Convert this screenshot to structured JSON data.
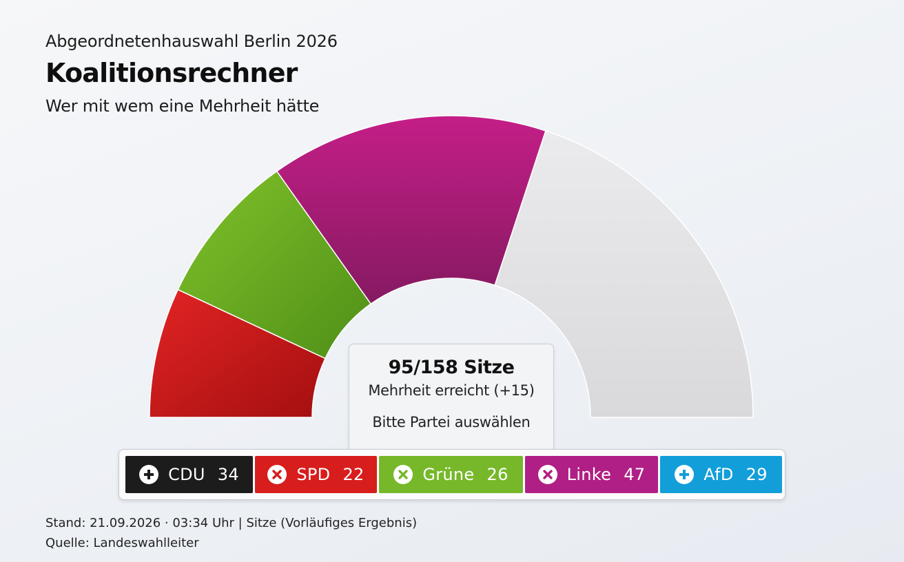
{
  "header": {
    "kicker": "Abgeordnetenhauswahl Berlin 2026",
    "title": "Koalitionsrechner",
    "subtitle": "Wer mit wem eine Mehrheit hätte"
  },
  "chart_data": {
    "type": "pie",
    "variant": "semicircle",
    "total_seats": 158,
    "slices": [
      {
        "party": "SPD",
        "seats": 22,
        "color": "#d01c1c",
        "selected": true
      },
      {
        "party": "Grüne",
        "seats": 26,
        "color": "#72b51f",
        "selected": true
      },
      {
        "party": "Linke",
        "seats": 47,
        "color": "#a51a7c",
        "selected": true
      },
      {
        "party": "Rest",
        "seats": 63,
        "color": "#e3e3e5",
        "selected": false
      }
    ]
  },
  "info": {
    "seats_text": "95/158 Sitze",
    "status_text": "Mehrheit erreicht (+15)",
    "hint_text": "Bitte Partei auswählen"
  },
  "parties": [
    {
      "name": "CDU",
      "seats": "34",
      "color": "#1c1c1c",
      "icon": "plus-icon"
    },
    {
      "name": "SPD",
      "seats": "22",
      "color": "#d81d1d",
      "icon": "x-icon"
    },
    {
      "name": "Grüne",
      "seats": "26",
      "color": "#76b82a",
      "icon": "x-icon"
    },
    {
      "name": "Linke",
      "seats": "47",
      "color": "#b01f85",
      "icon": "x-icon"
    },
    {
      "name": "AfD",
      "seats": "29",
      "color": "#129ed9",
      "icon": "plus-icon"
    }
  ],
  "footer": {
    "line1": "Stand: 21.09.2026 · 03:34 Uhr | Sitze (Vorläufiges Ergebnis)",
    "line2": "Quelle: Landeswahlleiter"
  }
}
